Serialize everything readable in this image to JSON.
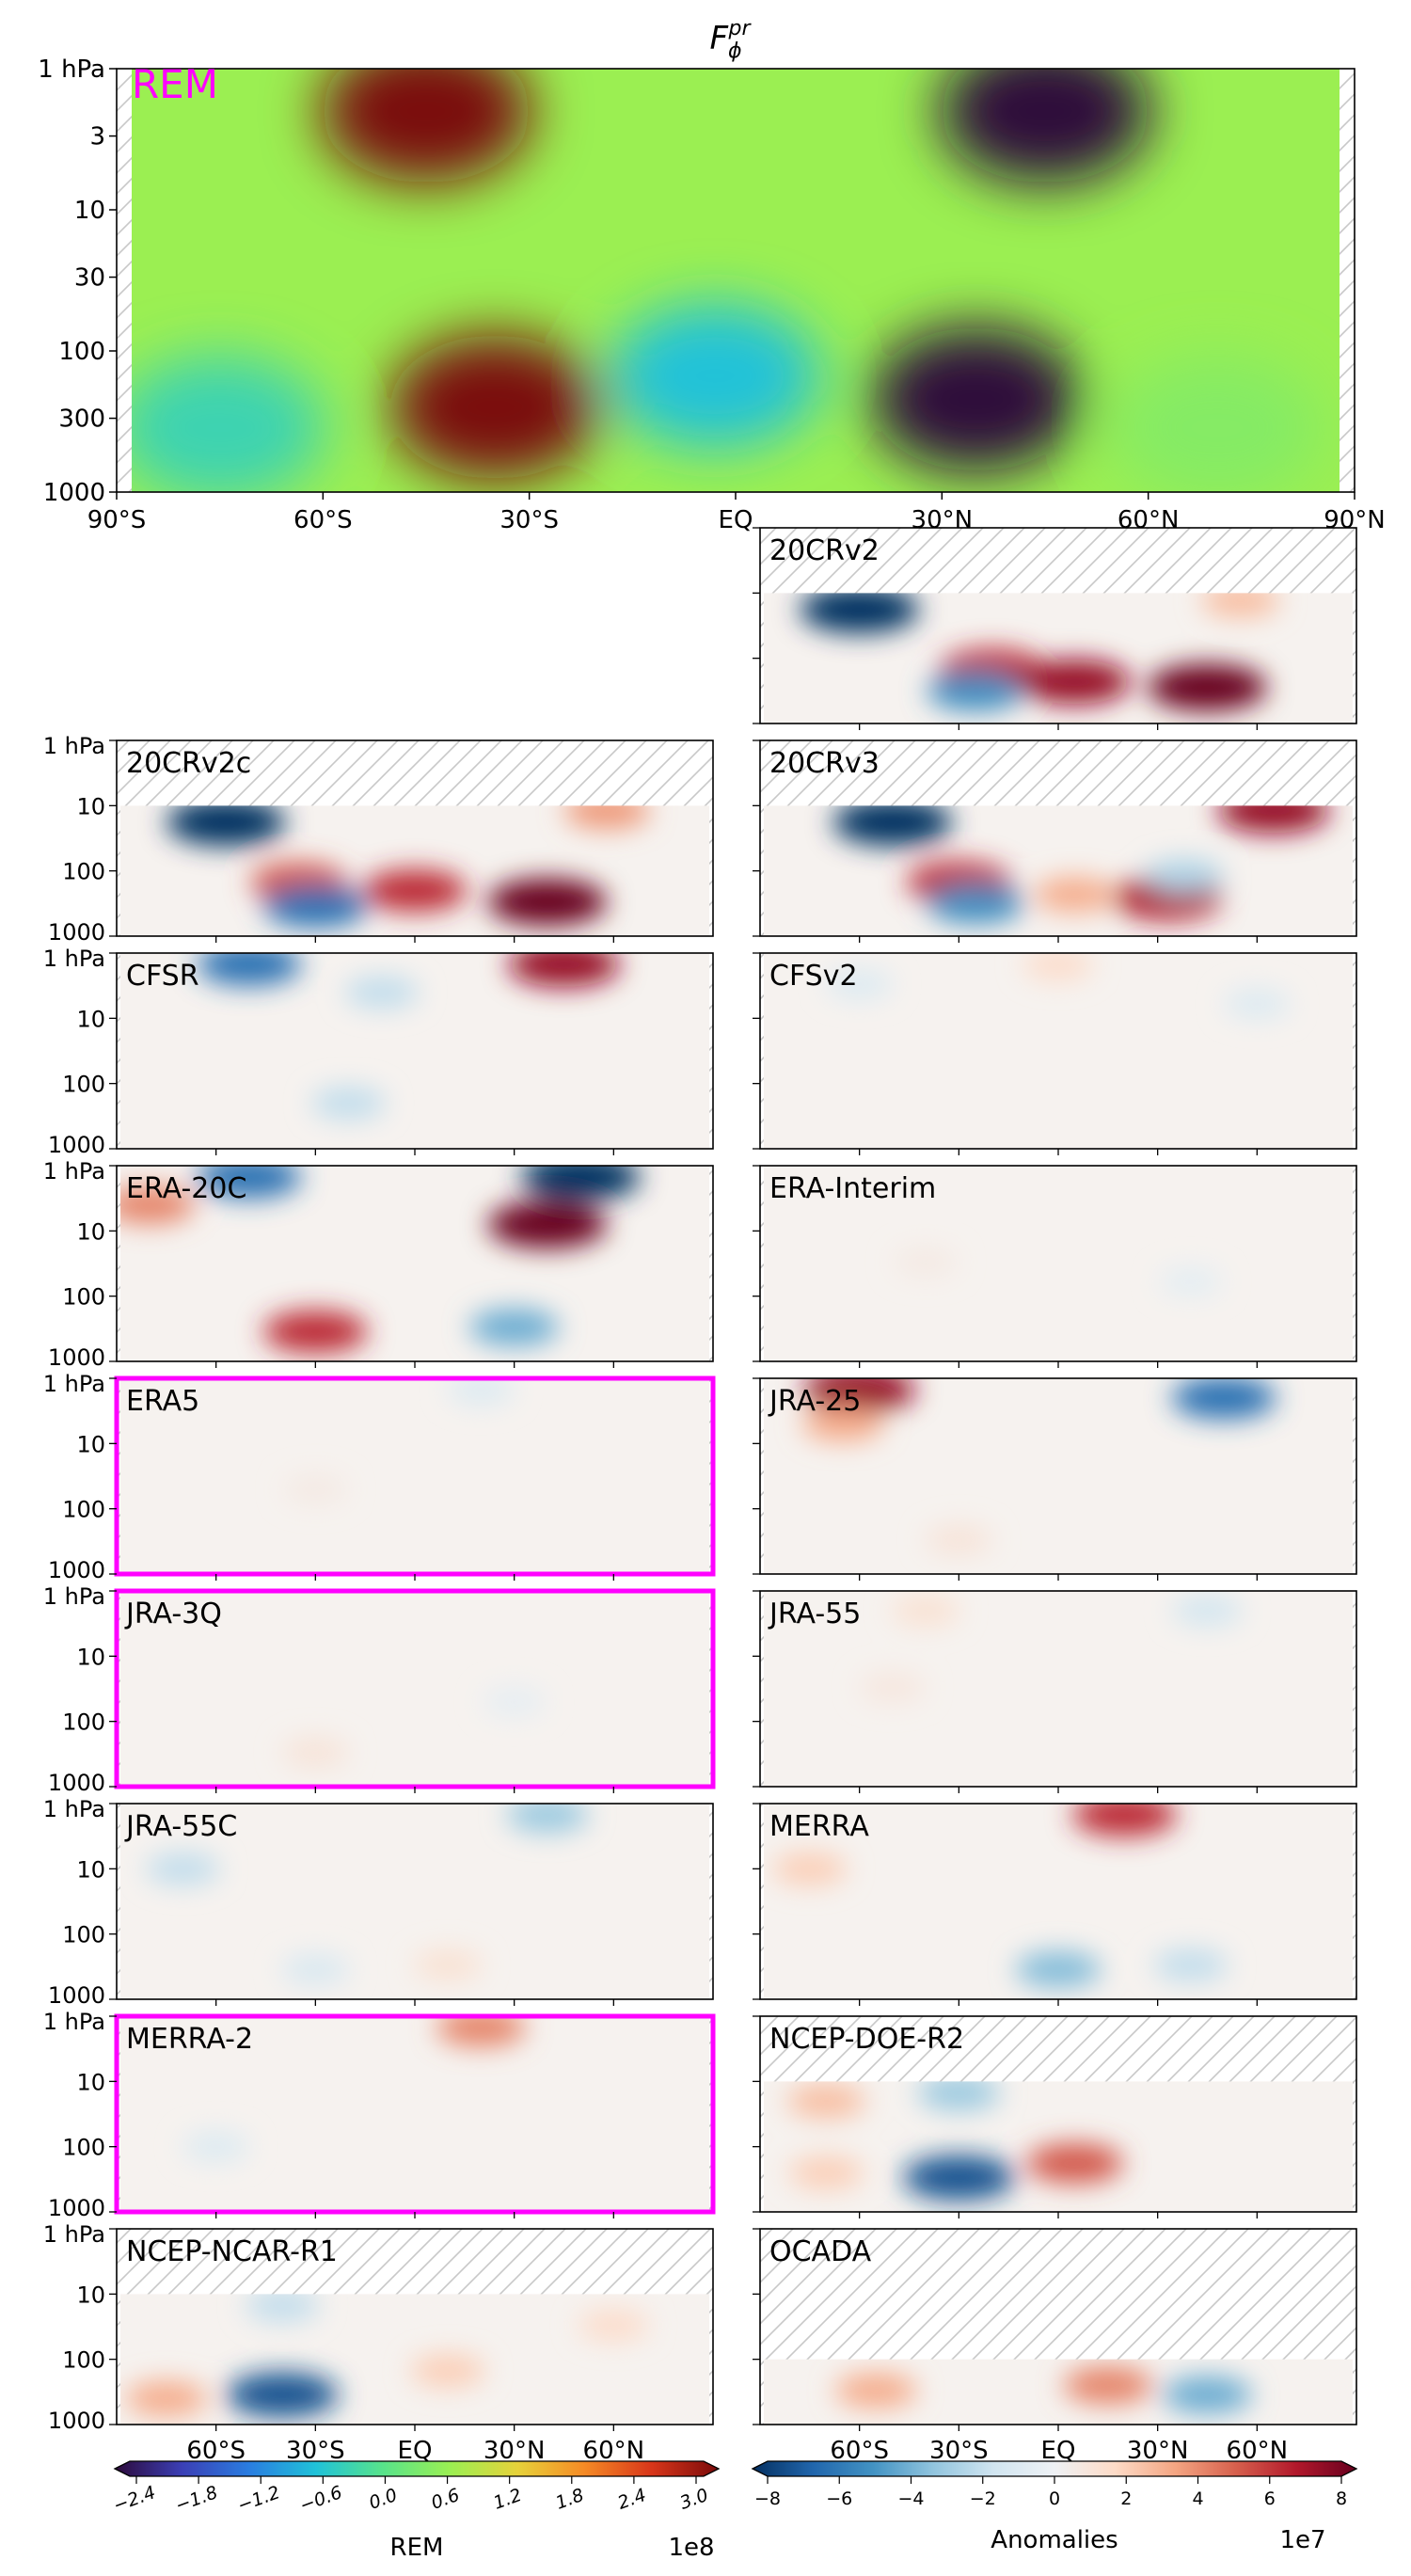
{
  "title_main": "F",
  "title_sub": "ϕ",
  "title_sup": "pr",
  "rem_tag": "REM",
  "colors": {
    "highlight": "#ff00ff",
    "hatch": "#c8c8c8",
    "rem_scale": [
      "#2d0a3a",
      "#3b3fb5",
      "#2a7de0",
      "#20c2d8",
      "#58e38a",
      "#9bef52",
      "#e6d23a",
      "#f58a25",
      "#d8361a",
      "#7a0a0a"
    ],
    "anom_scale": [
      "#053061",
      "#2166ac",
      "#4393c3",
      "#92c5de",
      "#d1e5f0",
      "#eef1f4",
      "#fddbc7",
      "#f4a582",
      "#d6604d",
      "#b2182b",
      "#67001f"
    ]
  },
  "axes": {
    "pressure_ticks": [
      "1 hPa",
      "3",
      "10",
      "30",
      "100",
      "300",
      "1000"
    ],
    "small_pressure_ticks": [
      "1 hPa",
      "10",
      "100",
      "1000"
    ],
    "lat_ticks_top": [
      "90°S",
      "60°S",
      "30°S",
      "EQ",
      "30°N",
      "60°N",
      "90°N"
    ],
    "lat_ticks_bottom": [
      "60°S",
      "30°S",
      "EQ",
      "30°N",
      "60°N"
    ]
  },
  "colorbars": {
    "rem": {
      "label": "REM",
      "exponent": "1e8",
      "ticks": [
        "−2.4",
        "−1.8",
        "−1.2",
        "−0.6",
        "0.0",
        "0.6",
        "1.2",
        "1.8",
        "2.4",
        "3.0"
      ]
    },
    "anom": {
      "label": "Anomalies",
      "exponent": "1e7",
      "ticks": [
        "−8",
        "−6",
        "−4",
        "−2",
        "0",
        "2",
        "4",
        "6",
        "8"
      ]
    }
  },
  "chart_data": {
    "type": "heatmap",
    "x_axis": {
      "label": "",
      "ticks": [
        "90°S",
        "60°S",
        "30°S",
        "EQ",
        "30°N",
        "60°N",
        "90°N"
      ],
      "range": [
        -90,
        90
      ]
    },
    "y_axis": {
      "label": "",
      "scale": "log",
      "range": [
        1000,
        1
      ],
      "ticks": [
        "1 hPa",
        "3",
        "10",
        "30",
        "100",
        "300",
        "1000"
      ]
    },
    "main": {
      "name": "REM",
      "features": [
        {
          "lat": -45,
          "p": 2,
          "value": 300000000.0
        },
        {
          "lat": 45,
          "p": 2,
          "value": -240000000.0
        },
        {
          "lat": -35,
          "p": 250,
          "value": 300000000.0
        },
        {
          "lat": 35,
          "p": 220,
          "value": -240000000.0
        },
        {
          "lat": -3,
          "p": 150,
          "value": -60000000.0
        },
        {
          "lat": -75,
          "p": 350,
          "value": -30000000.0
        },
        {
          "lat": 70,
          "p": 350,
          "value": 40000000.0
        }
      ]
    },
    "panels": [
      {
        "name": "20CRv2",
        "position": "right",
        "top_hpa": 10,
        "highlight": false,
        "features": [
          {
            "lat": -60,
            "p": 18,
            "value": -80000000.0
          },
          {
            "lat": -20,
            "p": 150,
            "value": 60000000.0
          },
          {
            "lat": -25,
            "p": 320,
            "value": -50000000.0
          },
          {
            "lat": 5,
            "p": 230,
            "value": 70000000.0
          },
          {
            "lat": 45,
            "p": 280,
            "value": 80000000.0
          },
          {
            "lat": 55,
            "p": 13,
            "value": 25000000.0
          }
        ]
      },
      {
        "name": "20CRv2c",
        "position": "left",
        "top_hpa": 10,
        "highlight": false,
        "features": [
          {
            "lat": -57,
            "p": 18,
            "value": -80000000.0
          },
          {
            "lat": -35,
            "p": 150,
            "value": 50000000.0
          },
          {
            "lat": -30,
            "p": 350,
            "value": -60000000.0
          },
          {
            "lat": 0,
            "p": 200,
            "value": 60000000.0
          },
          {
            "lat": 40,
            "p": 300,
            "value": 80000000.0
          },
          {
            "lat": 58,
            "p": 12,
            "value": 35000000.0
          }
        ]
      },
      {
        "name": "20CRv3",
        "position": "right",
        "top_hpa": 10,
        "highlight": false,
        "features": [
          {
            "lat": -50,
            "p": 18,
            "value": -80000000.0
          },
          {
            "lat": -30,
            "p": 150,
            "value": 60000000.0
          },
          {
            "lat": -25,
            "p": 320,
            "value": -50000000.0
          },
          {
            "lat": 5,
            "p": 230,
            "value": 30000000.0
          },
          {
            "lat": 33,
            "p": 260,
            "value": 65000000.0
          },
          {
            "lat": 38,
            "p": 120,
            "value": -25000000.0
          },
          {
            "lat": 65,
            "p": 12,
            "value": 70000000.0
          }
        ]
      },
      {
        "name": "CFSR",
        "position": "left",
        "top_hpa": 1,
        "highlight": false,
        "features": [
          {
            "lat": -50,
            "p": 1.5,
            "value": -60000000.0
          },
          {
            "lat": 45,
            "p": 1.5,
            "value": 70000000.0
          },
          {
            "lat": -10,
            "p": 4,
            "value": -20000000.0
          },
          {
            "lat": -20,
            "p": 200,
            "value": -20000000.0
          }
        ]
      },
      {
        "name": "CFSv2",
        "position": "right",
        "top_hpa": 1,
        "highlight": false,
        "features": [
          {
            "lat": 0,
            "p": 1.5,
            "value": 15000000.0
          },
          {
            "lat": -60,
            "p": 3,
            "value": -10000000.0
          },
          {
            "lat": 60,
            "p": 6,
            "value": -10000000.0
          }
        ]
      },
      {
        "name": "ERA-20C",
        "position": "left",
        "top_hpa": 1,
        "highlight": false,
        "features": [
          {
            "lat": -50,
            "p": 1.5,
            "value": -60000000.0
          },
          {
            "lat": 50,
            "p": 1.5,
            "value": -80000000.0
          },
          {
            "lat": 40,
            "p": 8,
            "value": 80000000.0
          },
          {
            "lat": -80,
            "p": 4,
            "value": 40000000.0
          },
          {
            "lat": -30,
            "p": 350,
            "value": 60000000.0
          },
          {
            "lat": 30,
            "p": 300,
            "value": -40000000.0
          }
        ]
      },
      {
        "name": "ERA-Interim",
        "position": "right",
        "top_hpa": 1,
        "highlight": false,
        "features": [
          {
            "lat": -40,
            "p": 30,
            "value": 6000000.0
          },
          {
            "lat": 40,
            "p": 60,
            "value": -6000000.0
          }
        ]
      },
      {
        "name": "ERA5",
        "position": "left",
        "top_hpa": 1,
        "highlight": true,
        "features": [
          {
            "lat": 20,
            "p": 1.5,
            "value": -10000000.0
          },
          {
            "lat": -30,
            "p": 50,
            "value": 6000000.0
          }
        ]
      },
      {
        "name": "JRA-25",
        "position": "right",
        "top_hpa": 1,
        "highlight": false,
        "features": [
          {
            "lat": -60,
            "p": 1.5,
            "value": 70000000.0
          },
          {
            "lat": 50,
            "p": 2,
            "value": -60000000.0
          },
          {
            "lat": -65,
            "p": 5,
            "value": 30000000.0
          },
          {
            "lat": -30,
            "p": 300,
            "value": 10000000.0
          }
        ]
      },
      {
        "name": "JRA-3Q",
        "position": "left",
        "top_hpa": 1,
        "highlight": true,
        "features": [
          {
            "lat": -30,
            "p": 300,
            "value": 10000000.0
          },
          {
            "lat": 30,
            "p": 50,
            "value": -5000000.0
          }
        ]
      },
      {
        "name": "JRA-55",
        "position": "right",
        "top_hpa": 1,
        "highlight": false,
        "features": [
          {
            "lat": -40,
            "p": 2,
            "value": 12000000.0
          },
          {
            "lat": 45,
            "p": 2,
            "value": -15000000.0
          },
          {
            "lat": -50,
            "p": 30,
            "value": 8000000.0
          }
        ]
      },
      {
        "name": "JRA-55C",
        "position": "left",
        "top_hpa": 1,
        "highlight": false,
        "features": [
          {
            "lat": 40,
            "p": 1.5,
            "value": -30000000.0
          },
          {
            "lat": -70,
            "p": 10,
            "value": -20000000.0
          },
          {
            "lat": -30,
            "p": 350,
            "value": -12000000.0
          },
          {
            "lat": 10,
            "p": 300,
            "value": 12000000.0
          }
        ]
      },
      {
        "name": "MERRA",
        "position": "right",
        "top_hpa": 1,
        "highlight": false,
        "features": [
          {
            "lat": 20,
            "p": 1.5,
            "value": 60000000.0
          },
          {
            "lat": -75,
            "p": 10,
            "value": 20000000.0
          },
          {
            "lat": 0,
            "p": 350,
            "value": -35000000.0
          },
          {
            "lat": 40,
            "p": 300,
            "value": -20000000.0
          }
        ]
      },
      {
        "name": "MERRA-2",
        "position": "left",
        "top_hpa": 1,
        "highlight": true,
        "features": [
          {
            "lat": 20,
            "p": 1.5,
            "value": 40000000.0
          },
          {
            "lat": -60,
            "p": 100,
            "value": -10000000.0
          }
        ]
      },
      {
        "name": "NCEP-DOE-R2",
        "position": "right",
        "top_hpa": 10,
        "highlight": false,
        "features": [
          {
            "lat": -30,
            "p": 15,
            "value": -30000000.0
          },
          {
            "lat": -30,
            "p": 300,
            "value": -70000000.0
          },
          {
            "lat": 5,
            "p": 180,
            "value": 50000000.0
          },
          {
            "lat": -70,
            "p": 20,
            "value": 25000000.0
          },
          {
            "lat": -70,
            "p": 250,
            "value": 20000000.0
          }
        ]
      },
      {
        "name": "NCEP-NCAR-R1",
        "position": "left",
        "top_hpa": 10,
        "highlight": false,
        "features": [
          {
            "lat": -40,
            "p": 350,
            "value": -70000000.0
          },
          {
            "lat": -40,
            "p": 15,
            "value": -20000000.0
          },
          {
            "lat": -75,
            "p": 400,
            "value": 30000000.0
          },
          {
            "lat": 10,
            "p": 150,
            "value": 20000000.0
          },
          {
            "lat": 60,
            "p": 30,
            "value": 15000000.0
          }
        ]
      },
      {
        "name": "OCADA",
        "position": "right",
        "top_hpa": 100,
        "highlight": false,
        "features": [
          {
            "lat": -55,
            "p": 300,
            "value": 30000000.0
          },
          {
            "lat": 15,
            "p": 250,
            "value": 40000000.0
          },
          {
            "lat": 45,
            "p": 350,
            "value": -40000000.0
          }
        ]
      }
    ]
  }
}
